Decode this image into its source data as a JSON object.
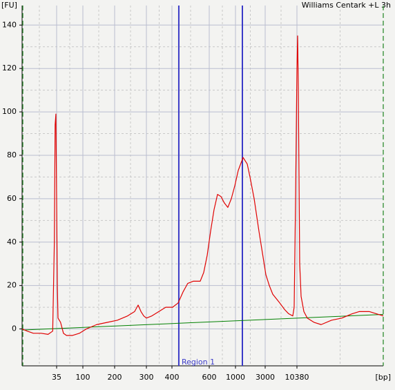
{
  "chart_data": {
    "type": "line",
    "title": "Williams Centark +L 3h",
    "y_label": "[FU]",
    "x_label": "[bp]",
    "color": "#e00000",
    "x": [
      9,
      11,
      14,
      19,
      25,
      30,
      32,
      33,
      34,
      35,
      36,
      37,
      41,
      46,
      52,
      66,
      87,
      108,
      135,
      169,
      207,
      236,
      258,
      270,
      280,
      290,
      300,
      319,
      345,
      373,
      403,
      428,
      451,
      475,
      505,
      544,
      565,
      587,
      616,
      659,
      705,
      754,
      806,
      862,
      922,
      987,
      1107,
      1324,
      1544,
      1710,
      1995,
      2384,
      2710,
      3082,
      3524,
      4034,
      4619,
      5289,
      6387,
      7506,
      8823,
      9311,
      9837,
      10380,
      10660,
      10960,
      11560,
      12210,
      13610,
      15570,
      20380,
      26720,
      40000,
      60000,
      89900,
      117800,
      176600,
      231200,
      302700
    ],
    "values": [
      0,
      -1,
      -2,
      -2,
      -2.5,
      -1,
      40,
      94,
      99,
      60,
      20,
      5,
      3,
      -2,
      -3,
      -3,
      -2,
      0,
      2,
      3,
      4,
      6,
      8,
      11,
      8,
      6,
      5,
      6,
      8,
      10,
      10,
      12,
      17,
      21,
      22,
      22,
      26,
      34,
      45,
      55,
      62,
      61,
      58,
      56,
      60,
      66,
      73,
      79,
      76,
      70,
      60,
      45,
      35,
      25,
      20,
      16,
      14,
      12,
      9,
      7,
      6,
      10,
      60,
      120,
      135,
      110,
      30,
      15,
      8,
      5,
      3,
      2,
      4,
      5,
      7,
      8,
      8,
      7,
      6
    ],
    "baseline": {
      "x": [
        9,
        302700
      ],
      "values": [
        -0.5,
        6.7
      ],
      "color": "#008000"
    },
    "region": {
      "label": "Region 1",
      "start": 431,
      "end": 1291,
      "color": "#3a3ac8"
    },
    "xlim": [
      9,
      302700
    ],
    "xticks": [
      35,
      100,
      200,
      300,
      400,
      600,
      1000,
      3000,
      10380
    ],
    "ylim": [
      -17,
      149
    ],
    "yticks": [
      0,
      20,
      40,
      60,
      80,
      100,
      120,
      140
    ],
    "grid": true
  }
}
